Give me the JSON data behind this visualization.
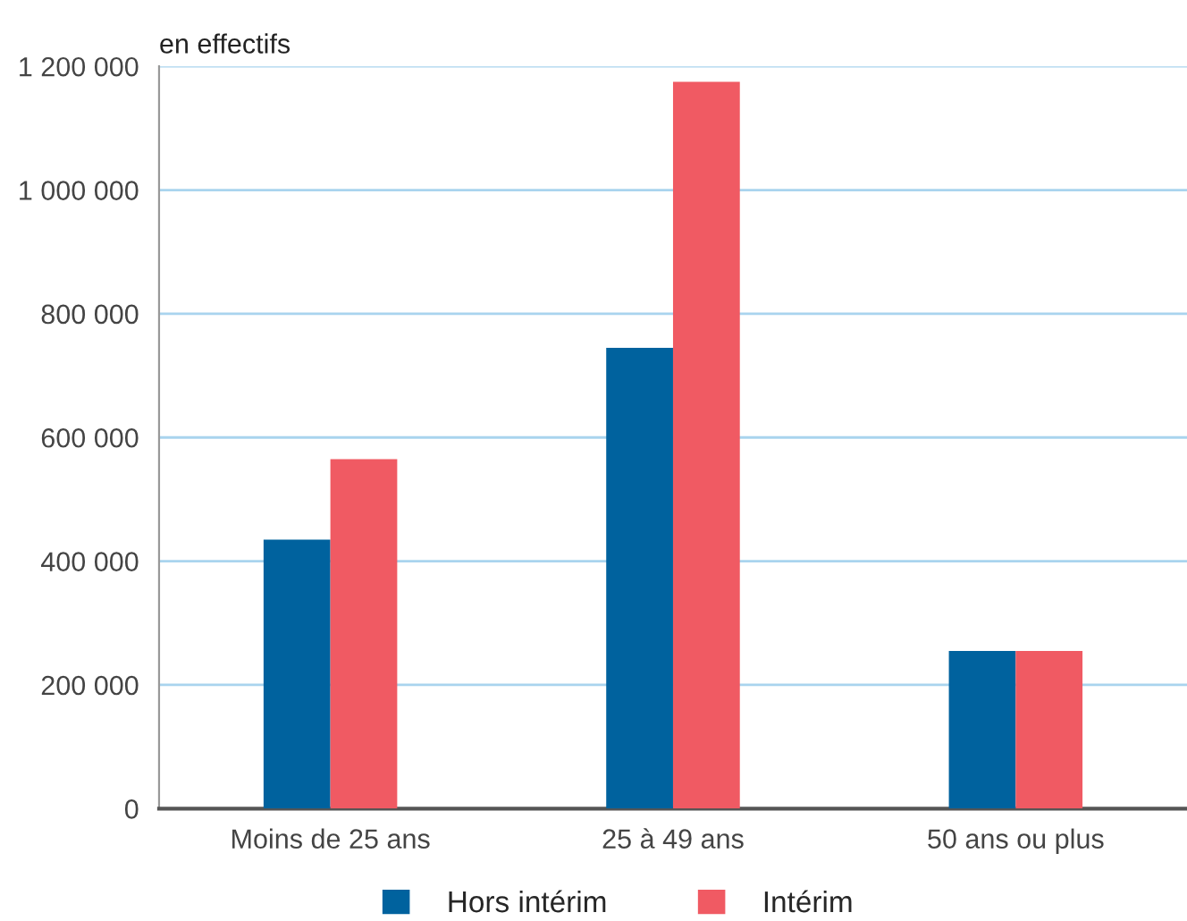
{
  "chart_data": {
    "type": "bar",
    "ylabel": "en effectifs",
    "categories": [
      "Moins de 25 ans",
      "25 à 49 ans",
      "50 ans ou plus"
    ],
    "series": [
      {
        "name": "Hors intérim",
        "color": "#00629e",
        "values": [
          435000,
          745000,
          255000
        ]
      },
      {
        "name": "Intérim",
        "color": "#f05a63",
        "values": [
          565000,
          1175000,
          255000
        ]
      }
    ],
    "ylim": [
      0,
      1200000
    ],
    "yticks": [
      {
        "value": 0,
        "label": "0"
      },
      {
        "value": 200000,
        "label": "200 000"
      },
      {
        "value": 400000,
        "label": "400 000"
      },
      {
        "value": 600000,
        "label": "600 000"
      },
      {
        "value": 800000,
        "label": "800 000"
      },
      {
        "value": 1000000,
        "label": "1 000 000"
      },
      {
        "value": 1200000,
        "label": "1 200 000"
      }
    ],
    "grid": "y",
    "legend": "bottom"
  }
}
